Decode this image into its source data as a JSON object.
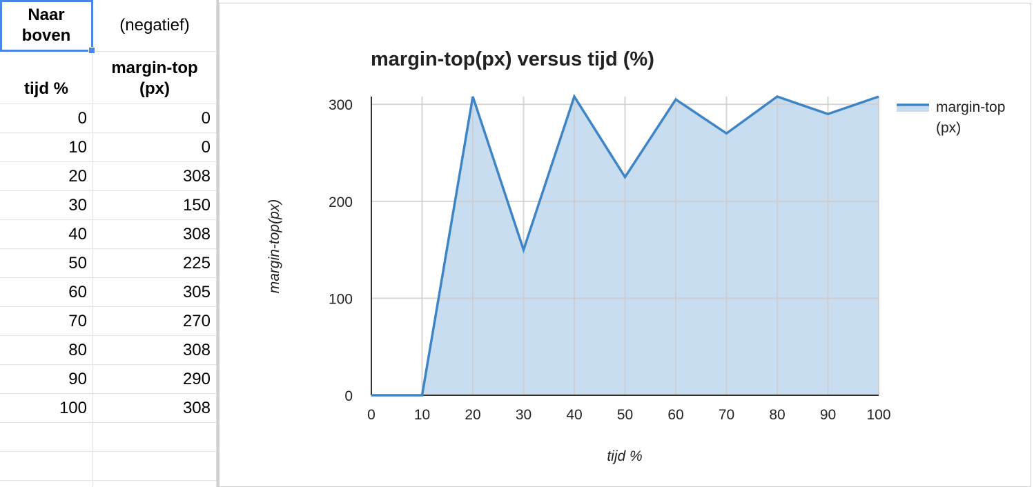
{
  "sheet": {
    "header_row1": {
      "col_a": "Naar boven",
      "col_b": "(negatief)"
    },
    "header_row2": {
      "col_a": "tijd %",
      "col_b": "margin-top (px)"
    },
    "rows": [
      {
        "tijd": "0",
        "margin": "0"
      },
      {
        "tijd": "10",
        "margin": "0"
      },
      {
        "tijd": "20",
        "margin": "308"
      },
      {
        "tijd": "30",
        "margin": "150"
      },
      {
        "tijd": "40",
        "margin": "308"
      },
      {
        "tijd": "50",
        "margin": "225"
      },
      {
        "tijd": "60",
        "margin": "305"
      },
      {
        "tijd": "70",
        "margin": "270"
      },
      {
        "tijd": "80",
        "margin": "308"
      },
      {
        "tijd": "90",
        "margin": "290"
      },
      {
        "tijd": "100",
        "margin": "308"
      }
    ]
  },
  "chart_data": {
    "type": "area",
    "title": "margin-top(px) versus tijd (%)",
    "xlabel": "tijd %",
    "ylabel": "margin-top(px)",
    "x": [
      0,
      10,
      20,
      30,
      40,
      50,
      60,
      70,
      80,
      90,
      100
    ],
    "series": [
      {
        "name": "margin-top (px)",
        "values": [
          0,
          0,
          308,
          150,
          308,
          225,
          305,
          270,
          308,
          290,
          308
        ]
      }
    ],
    "xlim": [
      0,
      100
    ],
    "ylim": [
      0,
      308
    ],
    "xticks": [
      0,
      10,
      20,
      30,
      40,
      50,
      60,
      70,
      80,
      90,
      100
    ],
    "yticks": [
      0,
      100,
      200,
      300
    ],
    "grid": true,
    "legend_position": "right",
    "colors": {
      "line": "#3d85c6",
      "fill": "#c6dbef",
      "grid": "#cccccc",
      "axis": "#333333"
    }
  }
}
